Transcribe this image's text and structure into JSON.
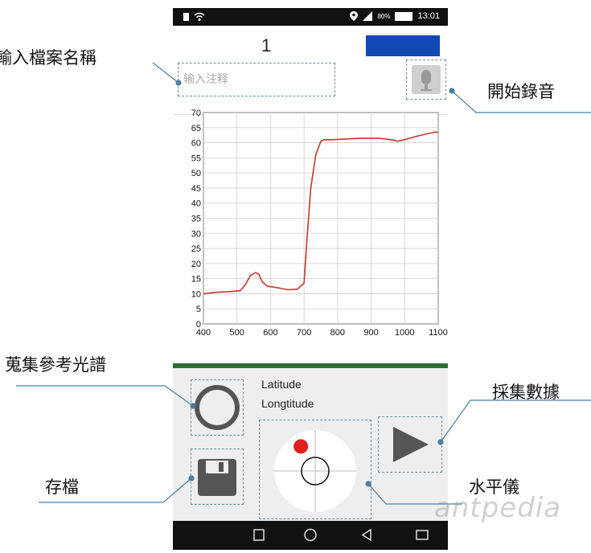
{
  "status_bar": {
    "time": "13:01",
    "battery": "80%"
  },
  "header": {
    "file_number": "1"
  },
  "note": {
    "placeholder": "输入注释"
  },
  "callouts": {
    "file_name": "輸入檔案名稱",
    "start_recording": "開始錄音",
    "collect_reference": "蒐集參考光譜",
    "collect_data": "採集數據",
    "save": "存檔",
    "level": "水平儀"
  },
  "location": {
    "latitude_label": "Latitude",
    "longitude_label": "Longtitude"
  },
  "level": {
    "bubble_x": -0.35,
    "bubble_y": -0.6
  },
  "watermark": "antpedia",
  "colors": {
    "series": "#c0392b",
    "header_button": "#1347b4",
    "divider": "#2c6e3a",
    "bubble": "#e0201e",
    "controls_bg": "#eeeeee",
    "callout_line": "#4a7fa0"
  },
  "icons": [
    "sim-icon",
    "wifi-icon",
    "location-icon",
    "signal-icon",
    "battery-icon",
    "microphone-icon",
    "circle-reference-icon",
    "play-icon",
    "floppy-save-icon",
    "level-bubble-icon",
    "nav-square-icon",
    "nav-home-icon",
    "nav-back-icon",
    "nav-menu-icon"
  ],
  "chart_data": {
    "type": "line",
    "xlim": [
      400,
      1100
    ],
    "ylim": [
      0,
      70
    ],
    "xticks": [
      400,
      500,
      600,
      700,
      800,
      900,
      1000,
      1100
    ],
    "xtick_labels": [
      "400",
      "500",
      "600",
      "700",
      "800",
      "900",
      "1000",
      "1100"
    ],
    "yticks": [
      0,
      5,
      10,
      15,
      20,
      25,
      30,
      35,
      40,
      45,
      50,
      55,
      60,
      65,
      70
    ],
    "grid": true,
    "series": [
      {
        "x": [
          400,
          440,
          480,
          510,
          525,
          540,
          555,
          565,
          575,
          590,
          620,
          650,
          680,
          700,
          710,
          720,
          735,
          750,
          760,
          780,
          820,
          870,
          920,
          960,
          980,
          1000,
          1030,
          1060,
          1090,
          1100
        ],
        "y": [
          10,
          10.5,
          10.7,
          11,
          13,
          16,
          17,
          16.5,
          14,
          12.5,
          12,
          11.3,
          11.5,
          13.5,
          30,
          45,
          56,
          60.5,
          61,
          61,
          61.2,
          61.5,
          61.5,
          61,
          60.5,
          61,
          62,
          62.8,
          63.5,
          63.5
        ]
      }
    ]
  }
}
